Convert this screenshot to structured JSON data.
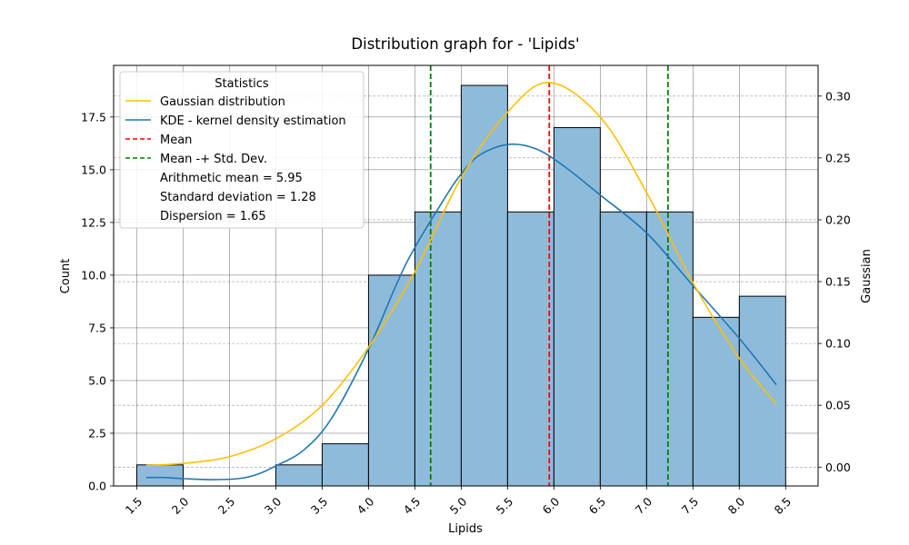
{
  "chart_data": {
    "type": "bar",
    "title": "Distribution graph for - 'Lipids'",
    "xlabel": "Lipids",
    "ylabel": "Count",
    "y2label": "Gaussian",
    "xlim": [
      1.25,
      8.85
    ],
    "ylim": [
      0,
      19.95
    ],
    "y2lim": [
      -0.0152,
      0.3248
    ],
    "x_ticks": [
      "1.5",
      "2.0",
      "2.5",
      "3.0",
      "3.5",
      "4.0",
      "4.5",
      "5.0",
      "5.5",
      "6.0",
      "6.5",
      "7.0",
      "7.5",
      "8.0",
      "8.5"
    ],
    "y_ticks": [
      "0.0",
      "2.5",
      "5.0",
      "7.5",
      "10.0",
      "12.5",
      "15.0",
      "17.5"
    ],
    "y2_ticks": [
      "0.00",
      "0.05",
      "0.10",
      "0.15",
      "0.20",
      "0.25",
      "0.30"
    ],
    "bin_edges": [
      1.5,
      2.0,
      2.5,
      3.0,
      3.5,
      4.0,
      4.5,
      5.0,
      5.5,
      6.0,
      6.5,
      7.0,
      7.5,
      8.0,
      8.5
    ],
    "counts": [
      1,
      0,
      0,
      1,
      2,
      10,
      13,
      19,
      13,
      17,
      13,
      13,
      8,
      9
    ],
    "colors": {
      "bar_fill": "#8fbbdb",
      "bar_edge": "#000000",
      "gaussian": "#ffc000",
      "kde": "#1f77b4",
      "mean": "#ff0000",
      "std": "#008000"
    },
    "gaussian": {
      "name": "Gaussian distribution",
      "x": [
        1.6,
        2.0,
        2.5,
        3.0,
        3.5,
        4.0,
        4.5,
        5.0,
        5.5,
        5.95,
        6.5,
        7.0,
        7.5,
        8.0,
        8.4
      ],
      "y": [
        0.0015,
        0.003,
        0.0085,
        0.023,
        0.05,
        0.097,
        0.158,
        0.234,
        0.287,
        0.311,
        0.283,
        0.222,
        0.149,
        0.088,
        0.051
      ]
    },
    "kde": {
      "name": "KDE - kernel density estimation",
      "x": [
        1.6,
        1.8,
        2.0,
        2.3,
        2.6,
        2.8,
        3.0,
        3.3,
        3.6,
        4.0,
        4.4,
        4.8,
        5.0,
        5.2,
        5.5,
        5.8,
        6.1,
        6.5,
        7.0,
        7.5,
        8.0,
        8.4
      ],
      "y": [
        0.4,
        0.4,
        0.35,
        0.3,
        0.35,
        0.55,
        0.95,
        1.7,
        3.2,
        6.5,
        10.5,
        13.5,
        14.8,
        15.7,
        16.2,
        16.0,
        15.2,
        13.8,
        12.0,
        9.5,
        7.0,
        4.8
      ]
    },
    "mean": {
      "name": "Mean",
      "value": 5.95
    },
    "std_lines": {
      "name": "Mean -+ Std. Dev.",
      "values": [
        4.67,
        7.23
      ]
    },
    "grid": true,
    "legend": {
      "title": "Statistics",
      "placement": "top-left",
      "extra_lines": [
        "Arithmetic mean = 5.95",
        "Standard deviation = 1.28",
        "Dispersion = 1.65"
      ]
    }
  }
}
